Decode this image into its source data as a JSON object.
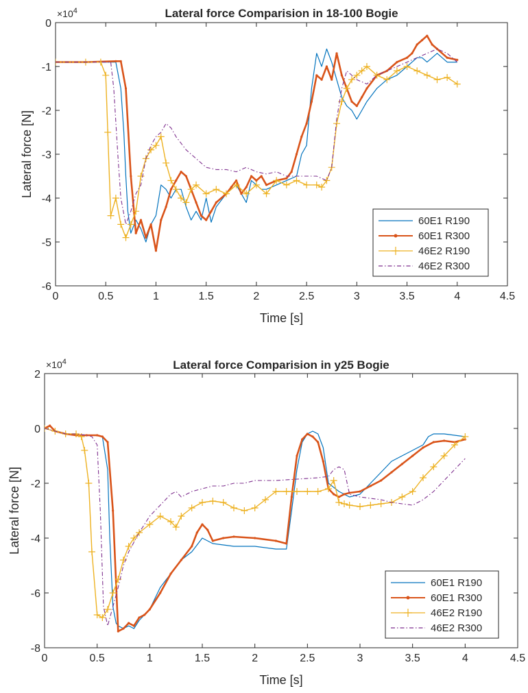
{
  "chart_data": [
    {
      "type": "line",
      "title": "Lateral force Comparision in 18-100 Bogie",
      "xlabel": "Time [s]",
      "ylabel": "Lateral force [N]",
      "y_multiplier_label": "×10",
      "y_multiplier_exponent": "4",
      "xlim": [
        0,
        4.5
      ],
      "ylim": [
        -6,
        0
      ],
      "xticks": [
        "0",
        "0.5",
        "1",
        "1.5",
        "2",
        "2.5",
        "3",
        "3.5",
        "4",
        "4.5"
      ],
      "yticks": [
        "0",
        "-1",
        "-2",
        "-3",
        "-4",
        "-5",
        "-6"
      ],
      "legend_position": "bottom-right",
      "series": [
        {
          "name": "60E1 R190",
          "color": "#0072BD",
          "style": "solid",
          "x": [
            0,
            0.3,
            0.6,
            0.65,
            0.68,
            0.7,
            0.72,
            0.75,
            0.8,
            0.85,
            0.9,
            0.95,
            1.0,
            1.05,
            1.1,
            1.15,
            1.2,
            1.25,
            1.3,
            1.35,
            1.4,
            1.45,
            1.5,
            1.55,
            1.6,
            1.7,
            1.8,
            1.9,
            1.95,
            2.0,
            2.05,
            2.1,
            2.2,
            2.3,
            2.4,
            2.45,
            2.5,
            2.55,
            2.6,
            2.65,
            2.7,
            2.75,
            2.8,
            2.85,
            2.9,
            2.95,
            3.0,
            3.05,
            3.1,
            3.2,
            3.3,
            3.4,
            3.5,
            3.55,
            3.6,
            3.65,
            3.7,
            3.75,
            3.8,
            3.9,
            4.0
          ],
          "y": [
            -0.9,
            -0.9,
            -0.9,
            -1.5,
            -2.5,
            -3.5,
            -4.3,
            -4.8,
            -4.5,
            -4.7,
            -5.0,
            -4.6,
            -4.4,
            -3.7,
            -3.8,
            -4.0,
            -3.8,
            -3.8,
            -4.2,
            -4.5,
            -4.3,
            -4.5,
            -4.0,
            -4.55,
            -4.2,
            -3.9,
            -3.7,
            -4.1,
            -3.6,
            -3.7,
            -3.8,
            -3.8,
            -3.7,
            -3.6,
            -3.5,
            -3.0,
            -2.8,
            -1.5,
            -0.7,
            -1.0,
            -0.6,
            -0.9,
            -1.3,
            -1.7,
            -1.9,
            -2.0,
            -2.2,
            -2.0,
            -1.8,
            -1.5,
            -1.3,
            -1.2,
            -1.0,
            -0.9,
            -0.8,
            -0.8,
            -0.9,
            -0.8,
            -0.7,
            -0.9,
            -0.9
          ]
        },
        {
          "name": "60E1 R300",
          "color": "#D95319",
          "style": "solid-dot",
          "x": [
            0,
            0.3,
            0.6,
            0.65,
            0.7,
            0.75,
            0.8,
            0.85,
            0.9,
            0.95,
            1.0,
            1.05,
            1.1,
            1.15,
            1.2,
            1.25,
            1.3,
            1.35,
            1.4,
            1.45,
            1.5,
            1.55,
            1.6,
            1.7,
            1.75,
            1.8,
            1.85,
            1.9,
            1.95,
            2.0,
            2.05,
            2.1,
            2.2,
            2.3,
            2.35,
            2.4,
            2.45,
            2.5,
            2.55,
            2.6,
            2.65,
            2.7,
            2.75,
            2.8,
            2.85,
            2.9,
            2.95,
            3.0,
            3.05,
            3.1,
            3.2,
            3.3,
            3.4,
            3.5,
            3.55,
            3.6,
            3.65,
            3.7,
            3.75,
            3.8,
            3.9,
            4.0
          ],
          "y": [
            -0.9,
            -0.9,
            -0.88,
            -0.88,
            -1.5,
            -3.5,
            -4.8,
            -4.5,
            -4.9,
            -4.6,
            -5.2,
            -4.5,
            -4.2,
            -3.8,
            -3.6,
            -3.4,
            -3.5,
            -3.8,
            -4.1,
            -4.4,
            -4.5,
            -4.3,
            -4.1,
            -3.9,
            -3.75,
            -3.6,
            -3.9,
            -3.75,
            -3.5,
            -3.6,
            -3.5,
            -3.7,
            -3.6,
            -3.55,
            -3.4,
            -3.0,
            -2.6,
            -2.3,
            -1.8,
            -1.2,
            -1.3,
            -1.0,
            -1.3,
            -0.7,
            -1.2,
            -1.5,
            -1.8,
            -1.9,
            -1.7,
            -1.5,
            -1.2,
            -1.1,
            -0.9,
            -0.8,
            -0.7,
            -0.5,
            -0.4,
            -0.3,
            -0.5,
            -0.6,
            -0.8,
            -0.85
          ]
        },
        {
          "name": "46E2 R190",
          "color": "#EDB120",
          "style": "solid-plus",
          "x": [
            0,
            0.3,
            0.45,
            0.5,
            0.52,
            0.55,
            0.6,
            0.65,
            0.7,
            0.75,
            0.8,
            0.85,
            0.9,
            0.95,
            1.0,
            1.05,
            1.1,
            1.15,
            1.2,
            1.25,
            1.3,
            1.35,
            1.4,
            1.5,
            1.6,
            1.7,
            1.8,
            1.9,
            2.0,
            2.1,
            2.2,
            2.3,
            2.4,
            2.5,
            2.6,
            2.65,
            2.7,
            2.75,
            2.8,
            2.85,
            2.9,
            2.95,
            3.0,
            3.05,
            3.1,
            3.2,
            3.3,
            3.4,
            3.5,
            3.6,
            3.7,
            3.8,
            3.9,
            4.0
          ],
          "y": [
            -0.9,
            -0.9,
            -0.9,
            -1.2,
            -2.5,
            -4.4,
            -4.0,
            -4.6,
            -4.9,
            -4.6,
            -4.3,
            -3.5,
            -3.1,
            -2.9,
            -2.8,
            -2.6,
            -3.2,
            -3.6,
            -3.8,
            -4.0,
            -4.1,
            -3.8,
            -3.7,
            -3.9,
            -3.8,
            -3.9,
            -3.7,
            -3.9,
            -3.7,
            -3.9,
            -3.6,
            -3.7,
            -3.6,
            -3.7,
            -3.7,
            -3.75,
            -3.6,
            -3.3,
            -2.3,
            -1.8,
            -1.5,
            -1.3,
            -1.2,
            -1.1,
            -1.0,
            -1.2,
            -1.3,
            -1.1,
            -1.0,
            -1.1,
            -1.2,
            -1.3,
            -1.25,
            -1.4
          ]
        },
        {
          "name": "46E2 R300",
          "color": "#7E2F8E",
          "style": "dashdot",
          "x": [
            0,
            0.3,
            0.55,
            0.58,
            0.62,
            0.65,
            0.7,
            0.75,
            0.8,
            0.85,
            0.9,
            0.95,
            1.0,
            1.05,
            1.1,
            1.15,
            1.2,
            1.3,
            1.4,
            1.5,
            1.6,
            1.7,
            1.8,
            1.9,
            2.0,
            2.1,
            2.2,
            2.3,
            2.4,
            2.5,
            2.6,
            2.7,
            2.75,
            2.8,
            2.85,
            2.9,
            3.0,
            3.1,
            3.2,
            3.3,
            3.4,
            3.5,
            3.6,
            3.7,
            3.8,
            3.9,
            4.0
          ],
          "y": [
            -0.9,
            -0.9,
            -0.9,
            -1.5,
            -3.0,
            -4.0,
            -4.6,
            -4.3,
            -3.9,
            -3.7,
            -3.1,
            -2.8,
            -2.6,
            -2.5,
            -2.3,
            -2.4,
            -2.6,
            -2.9,
            -3.1,
            -3.3,
            -3.35,
            -3.35,
            -3.4,
            -3.3,
            -3.4,
            -3.45,
            -3.4,
            -3.5,
            -3.5,
            -3.5,
            -3.5,
            -3.6,
            -3.3,
            -2.2,
            -1.5,
            -1.1,
            -1.3,
            -1.4,
            -1.2,
            -1.1,
            -1.0,
            -0.9,
            -0.8,
            -0.7,
            -0.6,
            -0.7,
            -0.9
          ]
        }
      ]
    },
    {
      "type": "line",
      "title": "Lateral force Comparision in y25 Bogie",
      "xlabel": "Time [s]",
      "ylabel": "Lateral force [N]",
      "y_multiplier_label": "×10",
      "y_multiplier_exponent": "4",
      "xlim": [
        0,
        4.5
      ],
      "ylim": [
        -8,
        2
      ],
      "xticks": [
        "0",
        "0.5",
        "1",
        "1.5",
        "2",
        "2.5",
        "3",
        "3.5",
        "4",
        "4.5"
      ],
      "yticks": [
        "2",
        "0",
        "-2",
        "-4",
        "-6",
        "-8"
      ],
      "legend_position": "bottom-right",
      "series": [
        {
          "name": "60E1 R190",
          "color": "#0072BD",
          "style": "solid",
          "x": [
            0,
            0.05,
            0.1,
            0.2,
            0.3,
            0.4,
            0.5,
            0.55,
            0.6,
            0.62,
            0.65,
            0.68,
            0.7,
            0.75,
            0.8,
            0.85,
            0.9,
            0.95,
            1.0,
            1.1,
            1.2,
            1.3,
            1.4,
            1.5,
            1.55,
            1.6,
            1.7,
            1.8,
            2.0,
            2.2,
            2.3,
            2.35,
            2.4,
            2.45,
            2.5,
            2.55,
            2.6,
            2.65,
            2.7,
            2.8,
            2.9,
            3.0,
            3.1,
            3.2,
            3.3,
            3.4,
            3.5,
            3.6,
            3.65,
            3.7,
            3.8,
            3.9,
            4.0
          ],
          "y": [
            0,
            0.1,
            -0.1,
            -0.2,
            -0.25,
            -0.25,
            -0.25,
            -0.3,
            -1.5,
            -4.0,
            -6.5,
            -7.1,
            -7.2,
            -7.3,
            -7.2,
            -7.3,
            -7.0,
            -6.8,
            -6.6,
            -5.8,
            -5.3,
            -4.8,
            -4.5,
            -4.0,
            -4.1,
            -4.2,
            -4.25,
            -4.3,
            -4.3,
            -4.4,
            -4.4,
            -3.0,
            -1.5,
            -0.5,
            -0.2,
            -0.1,
            -0.2,
            -0.7,
            -2.0,
            -2.3,
            -2.5,
            -2.4,
            -2.0,
            -1.6,
            -1.2,
            -1.0,
            -0.8,
            -0.6,
            -0.3,
            -0.2,
            -0.2,
            -0.25,
            -0.3
          ]
        },
        {
          "name": "60E1 R300",
          "color": "#D95319",
          "style": "solid-dot",
          "x": [
            0,
            0.05,
            0.1,
            0.2,
            0.3,
            0.4,
            0.5,
            0.55,
            0.6,
            0.65,
            0.7,
            0.75,
            0.8,
            0.85,
            0.9,
            0.95,
            1.0,
            1.1,
            1.2,
            1.3,
            1.4,
            1.45,
            1.5,
            1.55,
            1.6,
            1.7,
            1.8,
            2.0,
            2.2,
            2.3,
            2.35,
            2.4,
            2.45,
            2.5,
            2.55,
            2.6,
            2.65,
            2.7,
            2.75,
            2.8,
            2.85,
            2.9,
            3.0,
            3.1,
            3.2,
            3.3,
            3.4,
            3.5,
            3.6,
            3.7,
            3.8,
            3.9,
            4.0
          ],
          "y": [
            0,
            0.1,
            -0.1,
            -0.2,
            -0.25,
            -0.25,
            -0.25,
            -0.3,
            -0.5,
            -3.0,
            -7.4,
            -7.3,
            -7.1,
            -7.2,
            -6.9,
            -6.8,
            -6.6,
            -6.0,
            -5.3,
            -4.8,
            -4.3,
            -3.8,
            -3.5,
            -3.7,
            -4.1,
            -4.0,
            -3.95,
            -4.0,
            -4.1,
            -4.2,
            -2.5,
            -1.0,
            -0.4,
            -0.2,
            -0.3,
            -0.5,
            -1.2,
            -2.2,
            -2.4,
            -2.5,
            -2.4,
            -2.35,
            -2.3,
            -2.1,
            -1.9,
            -1.6,
            -1.3,
            -1.0,
            -0.7,
            -0.5,
            -0.45,
            -0.5,
            -0.4
          ]
        },
        {
          "name": "46E2 R190",
          "color": "#EDB120",
          "style": "solid-plus",
          "x": [
            0,
            0.1,
            0.2,
            0.3,
            0.35,
            0.38,
            0.42,
            0.45,
            0.5,
            0.55,
            0.6,
            0.65,
            0.7,
            0.75,
            0.8,
            0.85,
            0.9,
            1.0,
            1.1,
            1.2,
            1.25,
            1.3,
            1.4,
            1.5,
            1.6,
            1.7,
            1.8,
            1.9,
            2.0,
            2.1,
            2.2,
            2.3,
            2.4,
            2.5,
            2.6,
            2.7,
            2.75,
            2.8,
            2.85,
            2.9,
            3.0,
            3.1,
            3.2,
            3.3,
            3.4,
            3.5,
            3.6,
            3.7,
            3.8,
            3.9,
            4.0
          ],
          "y": [
            0,
            -0.1,
            -0.2,
            -0.2,
            -0.3,
            -0.8,
            -2.0,
            -4.5,
            -6.8,
            -6.9,
            -6.6,
            -6.0,
            -5.5,
            -4.8,
            -4.3,
            -4.0,
            -3.8,
            -3.5,
            -3.2,
            -3.4,
            -3.6,
            -3.2,
            -2.9,
            -2.7,
            -2.65,
            -2.7,
            -2.9,
            -3.0,
            -2.9,
            -2.6,
            -2.3,
            -2.3,
            -2.3,
            -2.3,
            -2.3,
            -2.2,
            -1.9,
            -2.7,
            -2.75,
            -2.8,
            -2.85,
            -2.8,
            -2.75,
            -2.7,
            -2.5,
            -2.3,
            -1.8,
            -1.4,
            -1.0,
            -0.6,
            -0.3
          ]
        },
        {
          "name": "46E2 R300",
          "color": "#7E2F8E",
          "style": "dashdot",
          "x": [
            0,
            0.1,
            0.2,
            0.3,
            0.4,
            0.45,
            0.5,
            0.53,
            0.56,
            0.6,
            0.65,
            0.7,
            0.75,
            0.8,
            0.9,
            1.0,
            1.1,
            1.2,
            1.25,
            1.3,
            1.4,
            1.5,
            1.6,
            1.7,
            1.8,
            1.9,
            2.0,
            2.2,
            2.4,
            2.6,
            2.7,
            2.75,
            2.8,
            2.85,
            2.9,
            3.0,
            3.1,
            3.2,
            3.3,
            3.4,
            3.5,
            3.6,
            3.7,
            3.8,
            3.9,
            4.0
          ],
          "y": [
            0,
            -0.1,
            -0.2,
            -0.2,
            -0.25,
            -0.3,
            -0.6,
            -3.0,
            -6.5,
            -7.2,
            -6.5,
            -5.8,
            -5.0,
            -4.5,
            -3.8,
            -3.2,
            -2.8,
            -2.4,
            -2.3,
            -2.5,
            -2.3,
            -2.2,
            -2.1,
            -2.1,
            -2.0,
            -2.0,
            -1.9,
            -1.9,
            -1.85,
            -1.8,
            -1.75,
            -1.5,
            -1.4,
            -1.5,
            -2.4,
            -2.5,
            -2.55,
            -2.6,
            -2.7,
            -2.75,
            -2.8,
            -2.6,
            -2.3,
            -1.9,
            -1.5,
            -1.1
          ]
        }
      ]
    }
  ]
}
